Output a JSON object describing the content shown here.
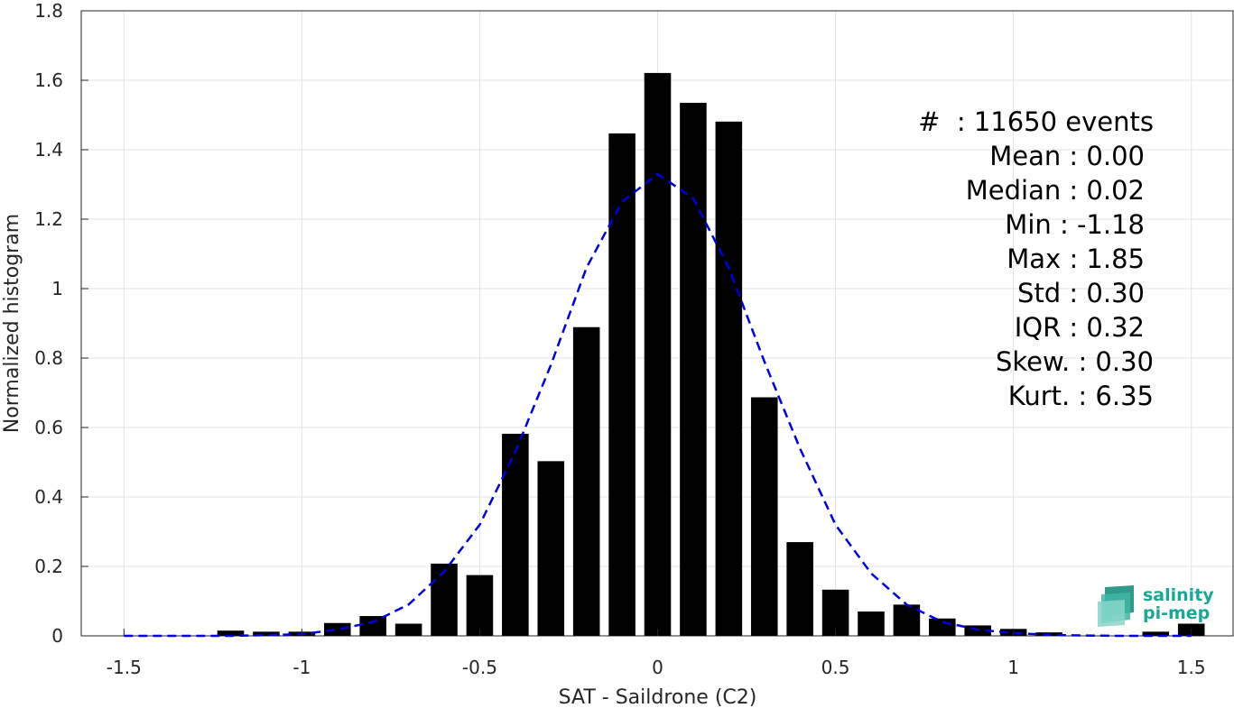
{
  "chart_data": {
    "type": "bar",
    "xlabel": "SAT - Saildrone (C2)",
    "ylabel": "Normalized histogram",
    "xlim": [
      -1.62,
      1.62
    ],
    "ylim": [
      0,
      1.8
    ],
    "xticks": [
      -1.5,
      -1,
      -0.5,
      0,
      0.5,
      1,
      1.5
    ],
    "xtick_labels": [
      "-1.5",
      "-1",
      "-0.5",
      "0",
      "0.5",
      "1",
      "1.5"
    ],
    "yticks": [
      0,
      0.2,
      0.4,
      0.6,
      0.8,
      1,
      1.2,
      1.4,
      1.6,
      1.8
    ],
    "ytick_labels": [
      "0",
      "0.2",
      "0.4",
      "0.6",
      "0.8",
      "1",
      "1.2",
      "1.4",
      "1.6",
      "1.8"
    ],
    "grid": true,
    "bar_width": 0.075,
    "series": [
      {
        "type": "bar",
        "color": "#000000",
        "x": [
          -1.2,
          -1.1,
          -1.0,
          -0.9,
          -0.8,
          -0.7,
          -0.6,
          -0.5,
          -0.4,
          -0.3,
          -0.2,
          -0.1,
          0.0,
          0.1,
          0.2,
          0.3,
          0.4,
          0.5,
          0.6,
          0.7,
          0.8,
          0.9,
          1.0,
          1.1,
          1.4,
          1.5
        ],
        "values": [
          0.015,
          0.012,
          0.012,
          0.037,
          0.057,
          0.035,
          0.208,
          0.175,
          0.582,
          0.503,
          0.889,
          1.447,
          1.621,
          1.535,
          1.481,
          0.687,
          0.27,
          0.133,
          0.07,
          0.09,
          0.05,
          0.03,
          0.02,
          0.01,
          0.012,
          0.035
        ]
      },
      {
        "type": "line",
        "style": "dashed",
        "color": "#0000dd",
        "x": [
          -1.5,
          -1.4,
          -1.3,
          -1.2,
          -1.1,
          -1.0,
          -0.9,
          -0.8,
          -0.7,
          -0.6,
          -0.5,
          -0.4,
          -0.3,
          -0.2,
          -0.1,
          0.0,
          0.1,
          0.2,
          0.3,
          0.4,
          0.5,
          0.6,
          0.7,
          0.8,
          0.9,
          1.0,
          1.1,
          1.2,
          1.3,
          1.4,
          1.5
        ],
        "values": [
          0.0,
          0.0,
          0.0,
          0.0,
          0.002,
          0.005,
          0.018,
          0.04,
          0.09,
          0.185,
          0.32,
          0.53,
          0.78,
          1.06,
          1.25,
          1.33,
          1.26,
          1.06,
          0.79,
          0.54,
          0.32,
          0.18,
          0.09,
          0.04,
          0.018,
          0.008,
          0.003,
          0.001,
          0.0,
          0.0,
          0.0
        ]
      }
    ]
  },
  "stats": [
    {
      "label": "#  : 11650 events"
    },
    {
      "label": "Mean : 0.00"
    },
    {
      "label": "Median : 0.02"
    },
    {
      "label": "Min : -1.18"
    },
    {
      "label": "Max : 1.85"
    },
    {
      "label": "Std : 0.30"
    },
    {
      "label": "IQR : 0.32"
    },
    {
      "label": "Skew. : 0.30"
    },
    {
      "label": "Kurt. : 6.35"
    }
  ],
  "logo": {
    "line1": "salinity",
    "line2": "pi-mep",
    "color": "#1aa896"
  }
}
